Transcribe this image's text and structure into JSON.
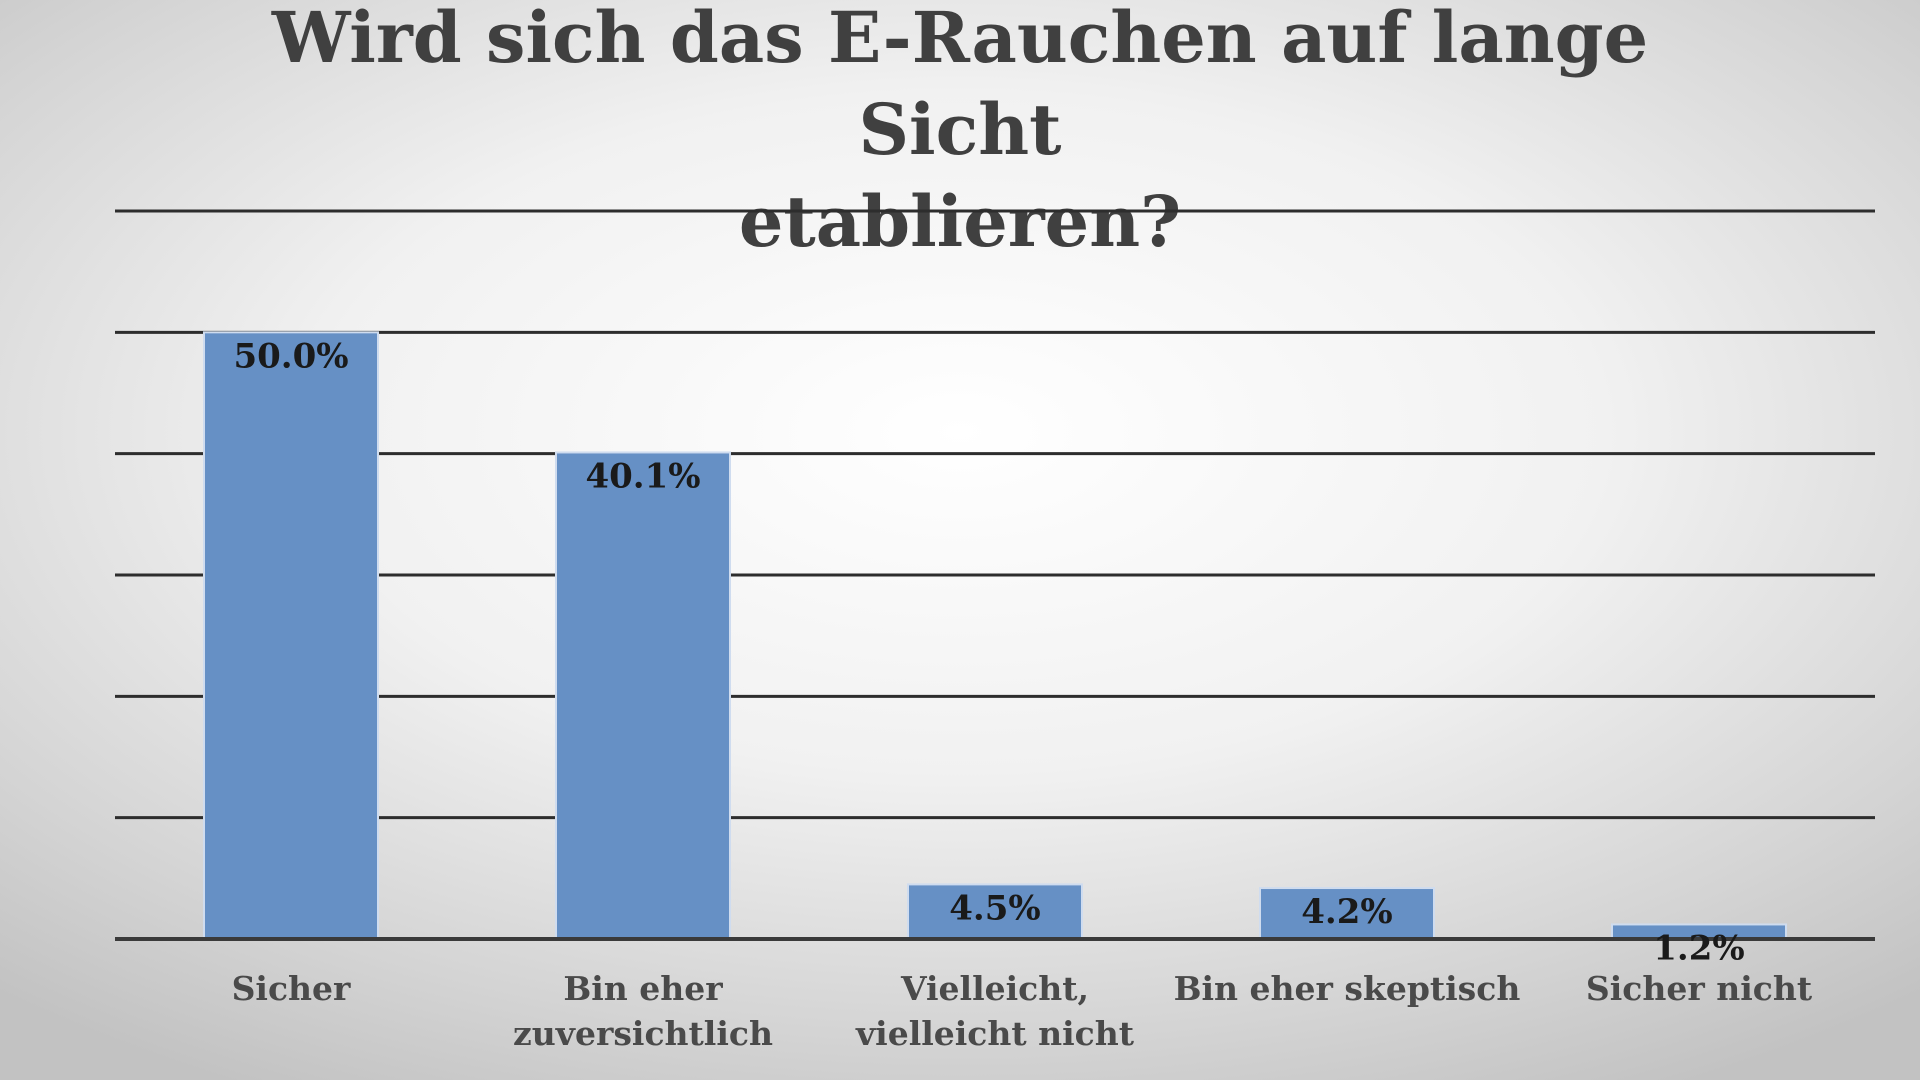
{
  "chart_data": {
    "type": "bar",
    "title": "Wird sich das E-Rauchen auf lange Sicht\netablieren?",
    "categories": [
      "Sicher",
      "Bin eher zuversichtlich",
      "Vielleicht, vielleicht nicht",
      "Bin eher skeptisch",
      "Sicher nicht"
    ],
    "category_lines": [
      [
        "Sicher"
      ],
      [
        "Bin eher",
        "zuversichtlich"
      ],
      [
        "Vielleicht,",
        "vielleicht nicht"
      ],
      [
        "Bin eher skeptisch"
      ],
      [
        "Sicher nicht"
      ]
    ],
    "values": [
      50.0,
      40.1,
      4.5,
      4.2,
      1.2
    ],
    "data_labels": [
      "50.0%",
      "40.1%",
      "4.5%",
      "4.2%",
      "1.2%"
    ],
    "ylim": [
      0,
      60
    ],
    "gridline_step": 10,
    "grid": true,
    "legend": "none",
    "bar_color": "#6690c5"
  }
}
